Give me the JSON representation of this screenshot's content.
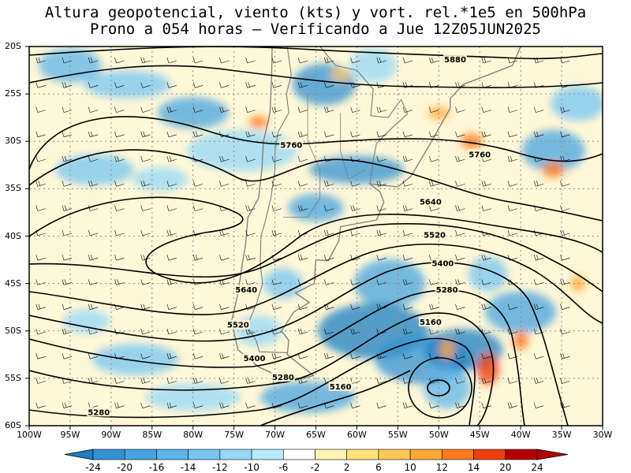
{
  "title": {
    "line1": "Altura geopotencial, viento (kts) y vort. rel.*1e5 en 500hPa",
    "line2": "Prono a 054 horas — Verificando a Jue 12Z05JUN2025"
  },
  "map": {
    "lon_range": [
      -100,
      -30
    ],
    "lat_range": [
      -60,
      -20
    ],
    "lat_labels": [
      "20S",
      "25S",
      "30S",
      "35S",
      "40S",
      "45S",
      "50S",
      "55S",
      "60S"
    ],
    "lon_labels": [
      "100W",
      "95W",
      "90W",
      "85W",
      "80W",
      "75W",
      "70W",
      "65W",
      "60W",
      "55W",
      "50W",
      "45W",
      "40W",
      "35W",
      "30W"
    ],
    "contour_labels": [
      {
        "text": "5880",
        "lon": -48,
        "lat": -21.5
      },
      {
        "text": "5760",
        "lon": -68,
        "lat": -30.5
      },
      {
        "text": "5760",
        "lon": -45,
        "lat": -31.5
      },
      {
        "text": "5640",
        "lon": -51,
        "lat": -36.5
      },
      {
        "text": "5640",
        "lon": -73.5,
        "lat": -45.8
      },
      {
        "text": "5520",
        "lon": -50.5,
        "lat": -40.0
      },
      {
        "text": "5520",
        "lon": -74.5,
        "lat": -49.5
      },
      {
        "text": "5400",
        "lon": -49.5,
        "lat": -43.0
      },
      {
        "text": "5400",
        "lon": -72.5,
        "lat": -53.0
      },
      {
        "text": "5280",
        "lon": -49,
        "lat": -45.8
      },
      {
        "text": "5280",
        "lon": -69,
        "lat": -55.0
      },
      {
        "text": "5280",
        "lon": -91.5,
        "lat": -58.7
      },
      {
        "text": "5160",
        "lon": -51,
        "lat": -49.2
      },
      {
        "text": "5160",
        "lon": -62,
        "lat": -56.0
      }
    ]
  },
  "colorbar": {
    "labels": [
      "-24",
      "-20",
      "-16",
      "-14",
      "-12",
      "-10",
      "-6",
      "-2",
      "2",
      "6",
      "10",
      "12",
      "14",
      "20",
      "24"
    ],
    "colors": [
      "#1e7fc4",
      "#3291d2",
      "#47a3df",
      "#5db4ea",
      "#77c6f2",
      "#95d8f7",
      "#b6ebfb",
      "#ffffff",
      "#fff3b3",
      "#ffe27a",
      "#ffc857",
      "#ffa935",
      "#ff7a1a",
      "#f04010",
      "#b20000"
    ]
  },
  "colors": {
    "contour": "#000000",
    "borders": "#7a7a7a",
    "grid": "#8a8a8a"
  }
}
